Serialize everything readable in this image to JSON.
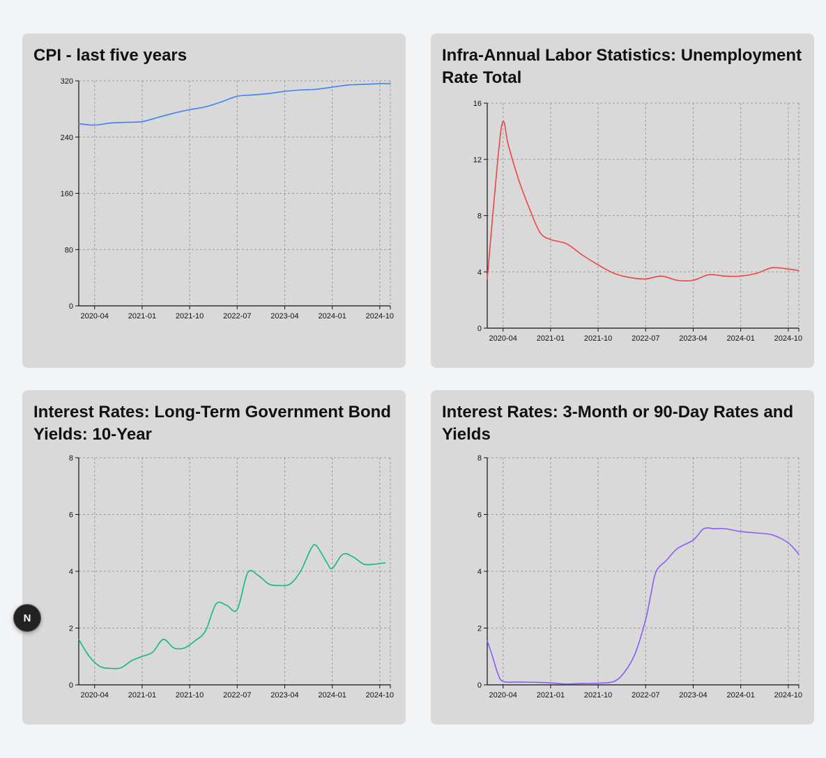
{
  "fab": {
    "label": "N"
  },
  "chart_data": [
    {
      "type": "line",
      "title": "CPI - last five years",
      "xlabel": "",
      "ylabel": "",
      "x_range": [
        "2020-01",
        "2024-12"
      ],
      "ylim": [
        0,
        320
      ],
      "yticks": [
        0,
        80,
        160,
        240,
        320
      ],
      "xticks": [
        "2020-04",
        "2021-01",
        "2021-10",
        "2022-07",
        "2023-04",
        "2024-01",
        "2024-10"
      ],
      "grid": true,
      "colors": {
        "line": "#3b82f6"
      },
      "series": [
        {
          "x": [
            "2020-01",
            "2020-04",
            "2020-07",
            "2020-10",
            "2021-01",
            "2021-04",
            "2021-07",
            "2021-10",
            "2022-01",
            "2022-04",
            "2022-07",
            "2022-10",
            "2023-01",
            "2023-04",
            "2023-07",
            "2023-10",
            "2024-01",
            "2024-04",
            "2024-07",
            "2024-10",
            "2024-12"
          ],
          "values": [
            259,
            257,
            260,
            261,
            262,
            268,
            274,
            279,
            283,
            290,
            298,
            300,
            302,
            305,
            307,
            308,
            311,
            314,
            315,
            316,
            316
          ]
        }
      ]
    },
    {
      "type": "line",
      "title": "Infra-Annual Labor Statistics: Unemployment Rate Total",
      "xlabel": "",
      "ylabel": "",
      "x_range": [
        "2020-01",
        "2024-12"
      ],
      "ylim": [
        0,
        16
      ],
      "yticks": [
        0,
        4,
        8,
        12,
        16
      ],
      "xticks": [
        "2020-04",
        "2021-01",
        "2021-10",
        "2022-07",
        "2023-04",
        "2024-01",
        "2024-10"
      ],
      "grid": true,
      "colors": {
        "line": "#ef4444"
      },
      "series": [
        {
          "x": [
            "2020-01",
            "2020-03",
            "2020-04",
            "2020-05",
            "2020-07",
            "2020-09",
            "2020-11",
            "2021-01",
            "2021-04",
            "2021-07",
            "2021-10",
            "2022-01",
            "2022-04",
            "2022-07",
            "2022-10",
            "2023-01",
            "2023-04",
            "2023-07",
            "2023-10",
            "2024-01",
            "2024-04",
            "2024-07",
            "2024-10",
            "2024-12"
          ],
          "values": [
            3.5,
            12.0,
            14.7,
            13.0,
            10.5,
            8.5,
            6.8,
            6.3,
            6.0,
            5.2,
            4.5,
            3.9,
            3.6,
            3.5,
            3.7,
            3.4,
            3.4,
            3.8,
            3.7,
            3.7,
            3.9,
            4.3,
            4.2,
            4.1
          ]
        }
      ]
    },
    {
      "type": "line",
      "title": "Interest Rates: Long-Term Government Bond Yields: 10-Year",
      "xlabel": "",
      "ylabel": "",
      "x_range": [
        "2020-01",
        "2024-12"
      ],
      "ylim": [
        0,
        8
      ],
      "yticks": [
        0,
        2,
        4,
        6,
        8
      ],
      "xticks": [
        "2020-04",
        "2021-01",
        "2021-10",
        "2022-07",
        "2023-04",
        "2024-01",
        "2024-10"
      ],
      "grid": true,
      "colors": {
        "line": "#10b981"
      },
      "series": [
        {
          "x": [
            "2020-01",
            "2020-03",
            "2020-05",
            "2020-07",
            "2020-09",
            "2020-11",
            "2021-01",
            "2021-03",
            "2021-05",
            "2021-07",
            "2021-09",
            "2021-11",
            "2022-01",
            "2022-03",
            "2022-05",
            "2022-07",
            "2022-09",
            "2022-11",
            "2023-01",
            "2023-03",
            "2023-05",
            "2023-07",
            "2023-09",
            "2023-10",
            "2023-12",
            "2024-01",
            "2024-03",
            "2024-05",
            "2024-07",
            "2024-09",
            "2024-11"
          ],
          "values": [
            1.6,
            1.0,
            0.65,
            0.58,
            0.6,
            0.85,
            1.0,
            1.15,
            1.6,
            1.3,
            1.3,
            1.55,
            1.9,
            2.85,
            2.8,
            2.65,
            3.95,
            3.85,
            3.55,
            3.5,
            3.55,
            4.0,
            4.8,
            4.9,
            4.3,
            4.1,
            4.6,
            4.5,
            4.25,
            4.25,
            4.3
          ]
        }
      ]
    },
    {
      "type": "line",
      "title": "Interest Rates: 3-Month or 90-Day Rates and Yields",
      "xlabel": "",
      "ylabel": "",
      "x_range": [
        "2020-01",
        "2024-12"
      ],
      "ylim": [
        0,
        8
      ],
      "yticks": [
        0,
        2,
        4,
        6,
        8
      ],
      "xticks": [
        "2020-04",
        "2021-01",
        "2021-10",
        "2022-07",
        "2023-04",
        "2024-01",
        "2024-10"
      ],
      "grid": true,
      "colors": {
        "line": "#8b5cf6"
      },
      "series": [
        {
          "x": [
            "2020-01",
            "2020-02",
            "2020-03",
            "2020-04",
            "2020-07",
            "2020-10",
            "2021-01",
            "2021-04",
            "2021-07",
            "2021-10",
            "2022-01",
            "2022-03",
            "2022-05",
            "2022-07",
            "2022-08",
            "2022-09",
            "2022-11",
            "2023-01",
            "2023-04",
            "2023-06",
            "2023-08",
            "2023-10",
            "2024-01",
            "2024-04",
            "2024-07",
            "2024-10",
            "2024-12"
          ],
          "values": [
            1.55,
            1.0,
            0.4,
            0.12,
            0.1,
            0.09,
            0.07,
            0.03,
            0.05,
            0.06,
            0.12,
            0.45,
            1.1,
            2.3,
            3.2,
            4.0,
            4.4,
            4.8,
            5.1,
            5.5,
            5.5,
            5.5,
            5.4,
            5.35,
            5.28,
            5.0,
            4.6
          ]
        }
      ]
    }
  ]
}
